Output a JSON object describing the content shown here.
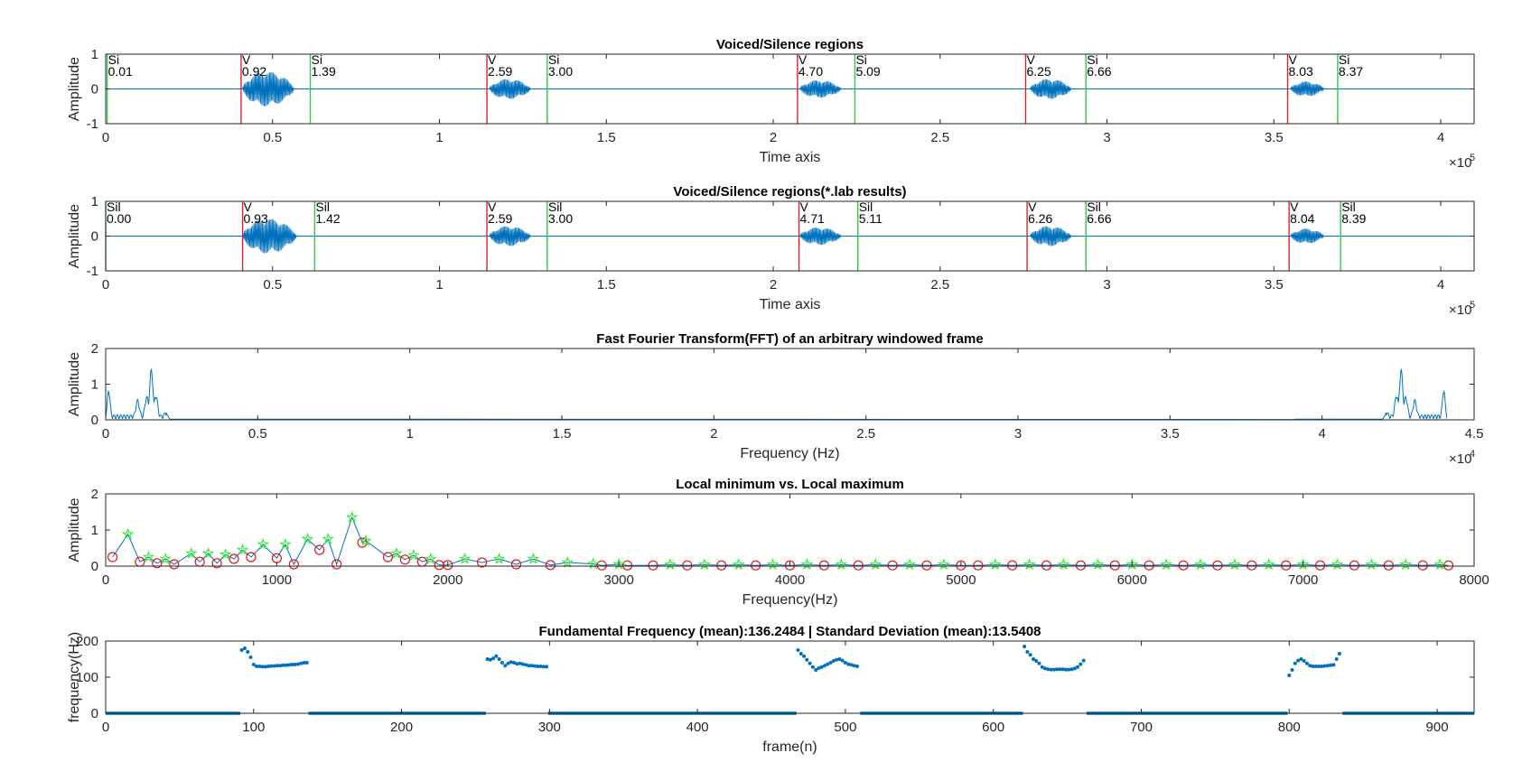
{
  "colors": {
    "signal": "#0072bd",
    "voiced_marker": "#d62728",
    "silence_marker": "#2ecc40",
    "local_min": "#e8141a",
    "local_max": "#3de83d",
    "axis": "#262626"
  },
  "chart_data": [
    {
      "type": "line",
      "title": "Voiced/Silence regions",
      "xlabel": "Time axis",
      "ylabel": "Amplitude",
      "xlim": [
        0,
        410000
      ],
      "ylim": [
        -1,
        1
      ],
      "x_exponent": "×10",
      "x_exponent_power": "5",
      "xticks": [
        0,
        50000,
        100000,
        150000,
        200000,
        250000,
        300000,
        350000,
        400000
      ],
      "xtick_labels": [
        "0",
        "0.5",
        "1",
        "1.5",
        "2",
        "2.5",
        "3",
        "3.5",
        "4"
      ],
      "yticks": [
        -1,
        0,
        1
      ],
      "ytick_labels": [
        "-1",
        "0",
        "1"
      ],
      "segments": [
        {
          "start": 41000,
          "end": 61000,
          "amp": 0.55
        },
        {
          "start": 115000,
          "end": 131000,
          "amp": 0.32
        },
        {
          "start": 208000,
          "end": 224000,
          "amp": 0.28
        },
        {
          "start": 277000,
          "end": 293000,
          "amp": 0.32
        },
        {
          "start": 355000,
          "end": 368000,
          "amp": 0.24
        }
      ],
      "markers": [
        {
          "x": 441,
          "kind": "silence",
          "label": "Si",
          "value": "0.01"
        },
        {
          "x": 40572,
          "kind": "voiced",
          "label": "V",
          "value": "0.92"
        },
        {
          "x": 61299,
          "kind": "silence",
          "label": "Si",
          "value": "1.39"
        },
        {
          "x": 114219,
          "kind": "voiced",
          "label": "V",
          "value": "2.59"
        },
        {
          "x": 132300,
          "kind": "silence",
          "label": "Si",
          "value": "3.00"
        },
        {
          "x": 207270,
          "kind": "voiced",
          "label": "V",
          "value": "4.70"
        },
        {
          "x": 224469,
          "kind": "silence",
          "label": "Si",
          "value": "5.09"
        },
        {
          "x": 275625,
          "kind": "voiced",
          "label": "V",
          "value": "6.25"
        },
        {
          "x": 293706,
          "kind": "silence",
          "label": "Si",
          "value": "6.66"
        },
        {
          "x": 354123,
          "kind": "voiced",
          "label": "V",
          "value": "8.03"
        },
        {
          "x": 369117,
          "kind": "silence",
          "label": "Si",
          "value": "8.37"
        }
      ]
    },
    {
      "type": "line",
      "title": "Voiced/Silence regions(*.lab results)",
      "xlabel": "Time axis",
      "ylabel": "Amplitude",
      "xlim": [
        0,
        410000
      ],
      "ylim": [
        -1,
        1
      ],
      "x_exponent": "×10",
      "x_exponent_power": "5",
      "xticks": [
        0,
        50000,
        100000,
        150000,
        200000,
        250000,
        300000,
        350000,
        400000
      ],
      "xtick_labels": [
        "0",
        "0.5",
        "1",
        "1.5",
        "2",
        "2.5",
        "3",
        "3.5",
        "4"
      ],
      "yticks": [
        -1,
        0,
        1
      ],
      "ytick_labels": [
        "-1",
        "0",
        "1"
      ],
      "segments": [
        {
          "start": 41000,
          "end": 62000,
          "amp": 0.55
        },
        {
          "start": 115000,
          "end": 131000,
          "amp": 0.32
        },
        {
          "start": 208000,
          "end": 224000,
          "amp": 0.28
        },
        {
          "start": 277000,
          "end": 293000,
          "amp": 0.32
        },
        {
          "start": 355000,
          "end": 368000,
          "amp": 0.24
        }
      ],
      "markers": [
        {
          "x": 0,
          "kind": "silence",
          "label": "Sil",
          "value": "0.00"
        },
        {
          "x": 41013,
          "kind": "voiced",
          "label": "V",
          "value": "0.93"
        },
        {
          "x": 62622,
          "kind": "silence",
          "label": "Sil",
          "value": "1.42"
        },
        {
          "x": 114219,
          "kind": "voiced",
          "label": "V",
          "value": "2.59"
        },
        {
          "x": 132300,
          "kind": "silence",
          "label": "Sil",
          "value": "3.00"
        },
        {
          "x": 207711,
          "kind": "voiced",
          "label": "V",
          "value": "4.71"
        },
        {
          "x": 225351,
          "kind": "silence",
          "label": "Sil",
          "value": "5.11"
        },
        {
          "x": 276066,
          "kind": "voiced",
          "label": "V",
          "value": "6.26"
        },
        {
          "x": 293706,
          "kind": "silence",
          "label": "Sil",
          "value": "6.66"
        },
        {
          "x": 354564,
          "kind": "voiced",
          "label": "V",
          "value": "8.04"
        },
        {
          "x": 369999,
          "kind": "silence",
          "label": "Sil",
          "value": "8.39"
        }
      ]
    },
    {
      "type": "line",
      "title": "Fast Fourier Transform(FFT) of an arbitrary windowed frame",
      "xlabel": "Frequency (Hz)",
      "ylabel": "Amplitude",
      "xlim": [
        0,
        45000
      ],
      "ylim": [
        0,
        2
      ],
      "x_exponent": "×10",
      "x_exponent_power": "4",
      "xticks": [
        0,
        5000,
        10000,
        15000,
        20000,
        25000,
        30000,
        35000,
        40000,
        45000
      ],
      "xtick_labels": [
        "0",
        "0.5",
        "1",
        "1.5",
        "2",
        "2.5",
        "3",
        "3.5",
        "4",
        "4.5"
      ],
      "yticks": [
        0,
        1,
        2
      ],
      "ytick_labels": [
        "0",
        "1",
        "2"
      ],
      "peaks": [
        {
          "x": 100,
          "y": 0.75
        },
        {
          "x": 1050,
          "y": 0.45
        },
        {
          "x": 1350,
          "y": 0.55
        },
        {
          "x": 1500,
          "y": 1.3
        },
        {
          "x": 1650,
          "y": 0.6
        },
        {
          "x": 2000,
          "y": 0.15
        }
      ],
      "mirror_about": 44100
    },
    {
      "type": "scatter",
      "title": "Local minimum vs. Local maximum",
      "xlabel": "Frequency(Hz)",
      "ylabel": "Amplitude",
      "xlim": [
        0,
        8000
      ],
      "ylim": [
        0,
        2
      ],
      "xticks": [
        0,
        1000,
        2000,
        3000,
        4000,
        5000,
        6000,
        7000,
        8000
      ],
      "xtick_labels": [
        "0",
        "1000",
        "2000",
        "3000",
        "4000",
        "5000",
        "6000",
        "7000",
        "8000"
      ],
      "yticks": [
        0,
        1,
        2
      ],
      "ytick_labels": [
        "0",
        "1",
        "2"
      ],
      "series": [
        {
          "marker": "circle",
          "x": [
            40,
            200,
            300,
            400,
            550,
            650,
            750,
            850,
            1000,
            1100,
            1250,
            1350,
            1500,
            1650,
            1750,
            1850,
            1950,
            2000,
            2200,
            2400,
            2600,
            2900,
            3050,
            3200,
            3400,
            3600,
            3800,
            4000,
            4200,
            4400,
            4600,
            4800,
            5000,
            5100,
            5300,
            5500,
            5700,
            5900,
            6100,
            6300,
            6500,
            6700,
            6900,
            7100,
            7300,
            7500,
            7700,
            7850
          ],
          "y": [
            0.25,
            0.12,
            0.08,
            0.05,
            0.12,
            0.08,
            0.2,
            0.25,
            0.22,
            0.05,
            0.45,
            0.05,
            0.65,
            0.25,
            0.18,
            0.12,
            0.03,
            0.03,
            0.1,
            0.05,
            0.03,
            0.02,
            0.02,
            0.02,
            0.02,
            0.02,
            0.02,
            0.02,
            0.02,
            0.02,
            0.02,
            0.02,
            0.02,
            0.02,
            0.02,
            0.02,
            0.02,
            0.02,
            0.02,
            0.02,
            0.02,
            0.02,
            0.02,
            0.02,
            0.02,
            0.02,
            0.02,
            0.02
          ]
        },
        {
          "marker": "star",
          "x": [
            130,
            250,
            350,
            500,
            600,
            700,
            800,
            920,
            1050,
            1180,
            1300,
            1440,
            1520,
            1700,
            1800,
            1900,
            2100,
            2300,
            2500,
            2700,
            2850,
            3000,
            3300,
            3500,
            3700,
            3900,
            4100,
            4300,
            4500,
            4700,
            4900,
            5200,
            5400,
            5600,
            5800,
            6000,
            6200,
            6400,
            6600,
            6800,
            7000,
            7200,
            7400,
            7600,
            7800
          ],
          "y": [
            0.88,
            0.25,
            0.2,
            0.35,
            0.35,
            0.32,
            0.45,
            0.6,
            0.6,
            0.75,
            0.75,
            1.35,
            0.7,
            0.35,
            0.3,
            0.2,
            0.2,
            0.2,
            0.2,
            0.1,
            0.06,
            0.05,
            0.04,
            0.04,
            0.04,
            0.04,
            0.04,
            0.04,
            0.04,
            0.04,
            0.04,
            0.04,
            0.04,
            0.04,
            0.04,
            0.04,
            0.04,
            0.04,
            0.04,
            0.04,
            0.04,
            0.04,
            0.04,
            0.04,
            0.04
          ]
        }
      ]
    },
    {
      "type": "scatter",
      "title": "Fundamental Frequency (mean):136.2484 | Standard Deviation (mean):13.5408",
      "xlabel": "frame(n)",
      "ylabel": "frequency(Hz)",
      "xlim": [
        0,
        925
      ],
      "ylim": [
        0,
        200
      ],
      "xticks": [
        0,
        100,
        200,
        300,
        400,
        500,
        600,
        700,
        800,
        900
      ],
      "xtick_labels": [
        "0",
        "100",
        "200",
        "300",
        "400",
        "500",
        "600",
        "700",
        "800",
        "900"
      ],
      "yticks": [
        0,
        100,
        200
      ],
      "ytick_labels": [
        "0",
        "100",
        "200"
      ],
      "voiced_ranges": [
        [
          92,
          137
        ],
        [
          258,
          299
        ],
        [
          468,
          510
        ],
        [
          621,
          663
        ],
        [
          800,
          836
        ]
      ],
      "zero_ranges": [
        [
          0,
          91
        ],
        [
          137,
          257
        ],
        [
          299,
          467
        ],
        [
          510,
          620
        ],
        [
          663,
          799
        ],
        [
          836,
          925
        ]
      ],
      "series": [
        {
          "marker": "dot",
          "x": [
            92,
            94,
            96,
            98,
            100,
            102,
            104,
            106,
            108,
            110,
            112,
            114,
            116,
            118,
            120,
            122,
            124,
            126,
            128,
            130,
            132,
            134,
            136,
            258,
            260,
            262,
            264,
            266,
            268,
            270,
            272,
            274,
            276,
            278,
            280,
            282,
            284,
            286,
            288,
            290,
            292,
            294,
            296,
            298,
            468,
            470,
            472,
            474,
            476,
            478,
            480,
            482,
            484,
            486,
            488,
            490,
            492,
            494,
            496,
            498,
            500,
            502,
            504,
            506,
            508,
            621,
            623,
            625,
            627,
            629,
            631,
            633,
            635,
            637,
            639,
            641,
            643,
            645,
            647,
            649,
            651,
            653,
            655,
            657,
            659,
            661,
            800,
            802,
            804,
            806,
            808,
            810,
            812,
            814,
            816,
            818,
            820,
            822,
            824,
            826,
            828,
            830,
            832,
            834
          ],
          "y": [
            175,
            180,
            170,
            155,
            135,
            130,
            130,
            129,
            129,
            130,
            131,
            131,
            132,
            132,
            133,
            133,
            134,
            135,
            135,
            136,
            138,
            140,
            140,
            150,
            148,
            152,
            158,
            150,
            140,
            132,
            138,
            142,
            140,
            137,
            138,
            136,
            134,
            132,
            132,
            131,
            130,
            130,
            129,
            129,
            175,
            165,
            158,
            148,
            138,
            128,
            120,
            125,
            128,
            132,
            136,
            140,
            145,
            148,
            150,
            146,
            140,
            136,
            134,
            132,
            130,
            185,
            170,
            162,
            150,
            145,
            138,
            128,
            124,
            122,
            121,
            121,
            122,
            122,
            122,
            121,
            121,
            122,
            124,
            128,
            136,
            146,
            105,
            120,
            138,
            146,
            150,
            145,
            138,
            132,
            130,
            130,
            130,
            130,
            131,
            132,
            133,
            134,
            150,
            165
          ]
        }
      ]
    }
  ]
}
